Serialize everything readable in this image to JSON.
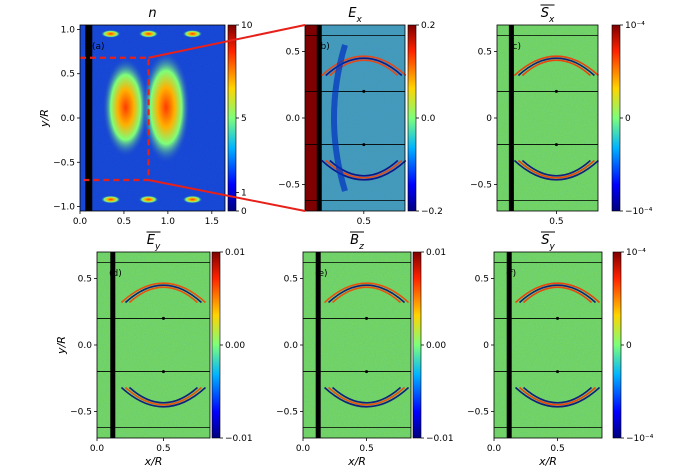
{
  "chart_data": [
    {
      "type": "heatmap",
      "title": "n",
      "panel_label": "(a)",
      "ylabel": "y/R",
      "xlim": [
        0,
        1.65
      ],
      "ylim": [
        -1.05,
        1.05
      ],
      "xticks": [
        "0.0",
        "0.5",
        "1.0",
        "1.5"
      ],
      "yticks": [
        "1.0",
        "0.5",
        "0.0",
        "-0.5",
        "-1.0"
      ],
      "colorbar": {
        "ticks": [
          "10",
          "5",
          "1",
          "0"
        ],
        "range": [
          0,
          10
        ]
      },
      "colormap": [
        "#00007f",
        "#0046ff",
        "#00c8ff",
        "#7dff7a",
        "#ffea00",
        "#ff4d00",
        "#7f0000"
      ]
    },
    {
      "type": "heatmap",
      "title": "E_x",
      "panel_label": "(b)",
      "xlim": [
        0,
        0.85
      ],
      "ylim": [
        -0.7,
        0.7
      ],
      "xticks": [
        "0.5"
      ],
      "yticks": [
        "0.5",
        "0.0",
        "-0.5"
      ],
      "colorbar": {
        "ticks": [
          "0.2",
          "0.0",
          "-0.2"
        ],
        "range": [
          -0.2,
          0.2
        ]
      }
    },
    {
      "type": "heatmap",
      "title": "S_x",
      "panel_label": "(c)",
      "xlim": [
        0,
        0.85
      ],
      "ylim": [
        -0.7,
        0.7
      ],
      "xticks": [
        "0.5"
      ],
      "yticks": [
        "0.5",
        "0",
        "-0.5"
      ],
      "colorbar": {
        "ticks": [
          "10^-4",
          "0",
          "-10^-4"
        ],
        "range": [
          -0.0001,
          0.0001
        ]
      }
    },
    {
      "type": "heatmap",
      "title": "E_y",
      "panel_label": "(d)",
      "xlabel": "x/R",
      "ylabel": "y/R",
      "xlim": [
        0,
        0.85
      ],
      "ylim": [
        -0.7,
        0.7
      ],
      "xticks": [
        "0.0",
        "0.5"
      ],
      "yticks": [
        "0.5",
        "0.0",
        "-0.5"
      ],
      "colorbar": {
        "ticks": [
          "0.01",
          "0.00",
          "-0.01"
        ],
        "range": [
          -0.01,
          0.01
        ]
      }
    },
    {
      "type": "heatmap",
      "title": "B_z",
      "panel_label": "(e)",
      "xlabel": "x/R",
      "xlim": [
        0,
        0.85
      ],
      "ylim": [
        -0.7,
        0.7
      ],
      "xticks": [
        "0.0",
        "0.5"
      ],
      "yticks": [
        "0.5",
        "0.0",
        "-0.5"
      ],
      "colorbar": {
        "ticks": [
          "0.01",
          "0.00",
          "-0.01"
        ],
        "range": [
          -0.01,
          0.01
        ]
      }
    },
    {
      "type": "heatmap",
      "title": "S_y",
      "panel_label": "(f)",
      "xlabel": "x/R",
      "xlim": [
        0,
        0.85
      ],
      "ylim": [
        -0.7,
        0.7
      ],
      "xticks": [
        "0.0",
        "0.5"
      ],
      "yticks": [
        "0.5",
        "0",
        "-0.5"
      ],
      "colorbar": {
        "ticks": [
          "10^-4",
          "0",
          "-10^-4"
        ],
        "range": [
          -0.0001,
          0.0001
        ]
      }
    }
  ],
  "colors": {
    "zoom_box": "#e8201a",
    "field_background": "#7ed957",
    "density_background": "#1a3fd0",
    "wall": "#000000"
  }
}
